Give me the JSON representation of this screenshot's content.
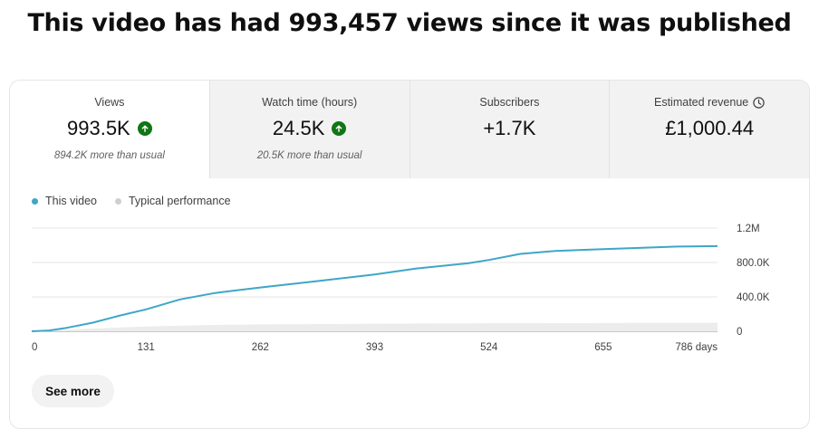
{
  "headline": "This video has had 993,457 views since it was published",
  "metrics": [
    {
      "label": "Views",
      "value": "993.5K",
      "trend": "up",
      "sub": "894.2K more than usual"
    },
    {
      "label": "Watch time (hours)",
      "value": "24.5K",
      "trend": "up",
      "sub": "20.5K more than usual"
    },
    {
      "label": "Subscribers",
      "value": "+1.7K",
      "trend": "",
      "sub": ""
    },
    {
      "label": "Estimated revenue",
      "value": "£1,000.44",
      "trend": "",
      "sub": ""
    }
  ],
  "legend": {
    "this_video": "This video",
    "typical": "Typical performance"
  },
  "colors": {
    "this_video": "#3ea6c8",
    "typical": "#cfcfcf",
    "up": "#107516"
  },
  "chart_data": {
    "type": "area",
    "x_ticks": [
      {
        "x": 0,
        "label": "0"
      },
      {
        "x": 131,
        "label": "131"
      },
      {
        "x": 262,
        "label": "262"
      },
      {
        "x": 393,
        "label": "393"
      },
      {
        "x": 524,
        "label": "524"
      },
      {
        "x": 655,
        "label": "655"
      },
      {
        "x": 786,
        "label": "786 days"
      }
    ],
    "y_ticks": [
      {
        "y": 0,
        "label": "0"
      },
      {
        "y": 400000,
        "label": "400.0K"
      },
      {
        "y": 800000,
        "label": "800.0K"
      },
      {
        "y": 1200000,
        "label": "1.2M"
      }
    ],
    "xlim": [
      0,
      786
    ],
    "ylim": [
      0,
      1200000
    ],
    "series": [
      {
        "name": "This video",
        "x": [
          0,
          20,
          40,
          70,
          100,
          131,
          170,
          210,
          262,
          320,
          393,
          440,
          500,
          524,
          560,
          600,
          655,
          700,
          740,
          786
        ],
        "values": [
          0,
          10000,
          40000,
          100000,
          180000,
          255000,
          370000,
          445000,
          510000,
          575000,
          660000,
          730000,
          790000,
          830000,
          900000,
          935000,
          955000,
          970000,
          985000,
          990000
        ]
      },
      {
        "name": "Typical performance",
        "x": [
          0,
          20,
          60,
          131,
          200,
          262,
          393,
          524,
          655,
          786
        ],
        "values": [
          0,
          8000,
          28000,
          55000,
          72000,
          80000,
          88000,
          93000,
          96000,
          99000
        ]
      }
    ],
    "grid": true,
    "legend_position": "top-left"
  },
  "actions": {
    "see_more": "See more"
  }
}
